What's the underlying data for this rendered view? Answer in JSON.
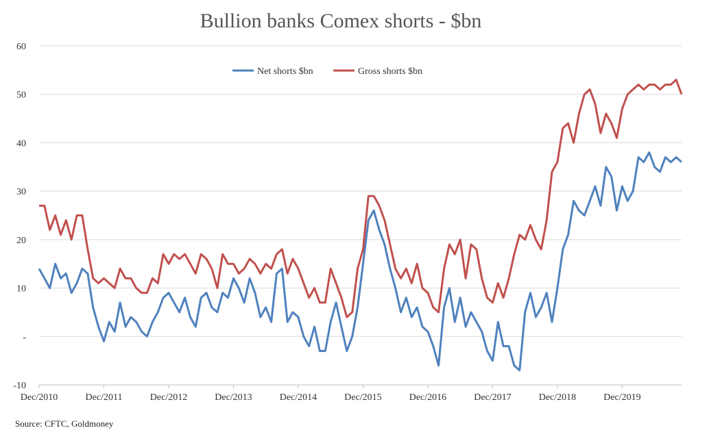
{
  "chart_data": {
    "type": "line",
    "title": "Bullion banks Comex shorts - $bn",
    "xlabel": "",
    "ylabel": "",
    "ylim": [
      -10,
      60
    ],
    "yticks": [
      60,
      50,
      40,
      30,
      20,
      10,
      0,
      -10
    ],
    "ytick_labels": [
      "60",
      "50",
      "40",
      "30",
      "20",
      "10",
      "-",
      "-10"
    ],
    "xtick_labels": [
      "Dec/2010",
      "Dec/2011",
      "Dec/2012",
      "Dec/2013",
      "Dec/2014",
      "Dec/2015",
      "Dec/2016",
      "Dec/2017",
      "Dec/2018",
      "Dec/2019"
    ],
    "xtick_years": [
      2010.917,
      2011.917,
      2012.917,
      2013.917,
      2014.917,
      2015.917,
      2016.917,
      2017.917,
      2018.917,
      2019.917
    ],
    "xlim": [
      2010.917,
      2020.833
    ],
    "grid": "horizontal",
    "legend_position": "top-center",
    "series": [
      {
        "name": "Net shorts $bn",
        "color": "#4f81bd",
        "x": [
          2010.917,
          2011.0,
          2011.083,
          2011.167,
          2011.25,
          2011.333,
          2011.417,
          2011.5,
          2011.583,
          2011.667,
          2011.75,
          2011.833,
          2011.917,
          2012.0,
          2012.083,
          2012.167,
          2012.25,
          2012.333,
          2012.417,
          2012.5,
          2012.583,
          2012.667,
          2012.75,
          2012.833,
          2012.917,
          2013.0,
          2013.083,
          2013.167,
          2013.25,
          2013.333,
          2013.417,
          2013.5,
          2013.583,
          2013.667,
          2013.75,
          2013.833,
          2013.917,
          2014.0,
          2014.083,
          2014.167,
          2014.25,
          2014.333,
          2014.417,
          2014.5,
          2014.583,
          2014.667,
          2014.75,
          2014.833,
          2014.917,
          2015.0,
          2015.083,
          2015.167,
          2015.25,
          2015.333,
          2015.417,
          2015.5,
          2015.583,
          2015.667,
          2015.75,
          2015.833,
          2015.917,
          2016.0,
          2016.083,
          2016.167,
          2016.25,
          2016.333,
          2016.417,
          2016.5,
          2016.583,
          2016.667,
          2016.75,
          2016.833,
          2016.917,
          2017.0,
          2017.083,
          2017.167,
          2017.25,
          2017.333,
          2017.417,
          2017.5,
          2017.583,
          2017.667,
          2017.75,
          2017.833,
          2017.917,
          2018.0,
          2018.083,
          2018.167,
          2018.25,
          2018.333,
          2018.417,
          2018.5,
          2018.583,
          2018.667,
          2018.75,
          2018.833,
          2018.917,
          2019.0,
          2019.083,
          2019.167,
          2019.25,
          2019.333,
          2019.417,
          2019.5,
          2019.583,
          2019.667,
          2019.75,
          2019.833,
          2019.917,
          2020.0,
          2020.083,
          2020.167,
          2020.25,
          2020.333,
          2020.417,
          2020.5,
          2020.583,
          2020.667,
          2020.75,
          2020.833
        ],
        "values": [
          14,
          12,
          10,
          15,
          12,
          13,
          9,
          11,
          14,
          13,
          6,
          2,
          -1,
          3,
          1,
          7,
          2,
          4,
          3,
          1,
          0,
          3,
          5,
          8,
          9,
          7,
          5,
          8,
          4,
          2,
          8,
          9,
          6,
          5,
          9,
          8,
          12,
          10,
          7,
          12,
          9,
          4,
          6,
          3,
          13,
          14,
          3,
          5,
          4,
          0,
          -2,
          2,
          -3,
          -3,
          3,
          7,
          2,
          -3,
          0,
          6,
          15,
          24,
          26,
          22,
          19,
          14,
          10,
          5,
          8,
          4,
          6,
          2,
          1,
          -2,
          -6,
          6,
          10,
          3,
          8,
          2,
          5,
          3,
          1,
          -3,
          -5,
          3,
          -2,
          -2,
          -6,
          -7,
          5,
          9,
          4,
          6,
          9,
          3,
          10,
          18,
          21,
          28,
          26,
          25,
          28,
          31,
          27,
          35,
          33,
          26,
          31,
          28,
          30,
          37,
          36,
          38,
          35,
          34,
          37,
          36,
          37,
          36
        ]
      },
      {
        "name": "Gross shorts $bn",
        "color": "#c0504d",
        "x": [
          2010.917,
          2011.0,
          2011.083,
          2011.167,
          2011.25,
          2011.333,
          2011.417,
          2011.5,
          2011.583,
          2011.667,
          2011.75,
          2011.833,
          2011.917,
          2012.0,
          2012.083,
          2012.167,
          2012.25,
          2012.333,
          2012.417,
          2012.5,
          2012.583,
          2012.667,
          2012.75,
          2012.833,
          2012.917,
          2013.0,
          2013.083,
          2013.167,
          2013.25,
          2013.333,
          2013.417,
          2013.5,
          2013.583,
          2013.667,
          2013.75,
          2013.833,
          2013.917,
          2014.0,
          2014.083,
          2014.167,
          2014.25,
          2014.333,
          2014.417,
          2014.5,
          2014.583,
          2014.667,
          2014.75,
          2014.833,
          2014.917,
          2015.0,
          2015.083,
          2015.167,
          2015.25,
          2015.333,
          2015.417,
          2015.5,
          2015.583,
          2015.667,
          2015.75,
          2015.833,
          2015.917,
          2016.0,
          2016.083,
          2016.167,
          2016.25,
          2016.333,
          2016.417,
          2016.5,
          2016.583,
          2016.667,
          2016.75,
          2016.833,
          2016.917,
          2017.0,
          2017.083,
          2017.167,
          2017.25,
          2017.333,
          2017.417,
          2017.5,
          2017.583,
          2017.667,
          2017.75,
          2017.833,
          2017.917,
          2018.0,
          2018.083,
          2018.167,
          2018.25,
          2018.333,
          2018.417,
          2018.5,
          2018.583,
          2018.667,
          2018.75,
          2018.833,
          2018.917,
          2019.0,
          2019.083,
          2019.167,
          2019.25,
          2019.333,
          2019.417,
          2019.5,
          2019.583,
          2019.667,
          2019.75,
          2019.833,
          2019.917,
          2020.0,
          2020.083,
          2020.167,
          2020.25,
          2020.333,
          2020.417,
          2020.5,
          2020.583,
          2020.667,
          2020.75,
          2020.833
        ],
        "values": [
          27,
          27,
          22,
          25,
          21,
          24,
          20,
          25,
          25,
          18,
          12,
          11,
          12,
          11,
          10,
          14,
          12,
          12,
          10,
          9,
          9,
          12,
          11,
          17,
          15,
          17,
          16,
          17,
          15,
          13,
          17,
          16,
          14,
          10,
          17,
          15,
          15,
          13,
          14,
          16,
          15,
          13,
          15,
          14,
          17,
          18,
          13,
          16,
          14,
          11,
          8,
          10,
          7,
          7,
          14,
          11,
          8,
          4,
          5,
          14,
          18,
          29,
          29,
          27,
          24,
          19,
          14,
          12,
          14,
          11,
          15,
          10,
          9,
          6,
          5,
          14,
          19,
          17,
          20,
          12,
          19,
          18,
          12,
          8,
          7,
          11,
          8,
          12,
          17,
          21,
          20,
          23,
          20,
          18,
          24,
          34,
          36,
          43,
          44,
          40,
          46,
          50,
          51,
          48,
          42,
          46,
          44,
          41,
          47,
          50,
          51,
          52,
          51,
          52,
          52,
          51,
          52,
          52,
          53,
          50
        ]
      }
    ]
  },
  "source": "Source: CFTC, Goldmoney"
}
